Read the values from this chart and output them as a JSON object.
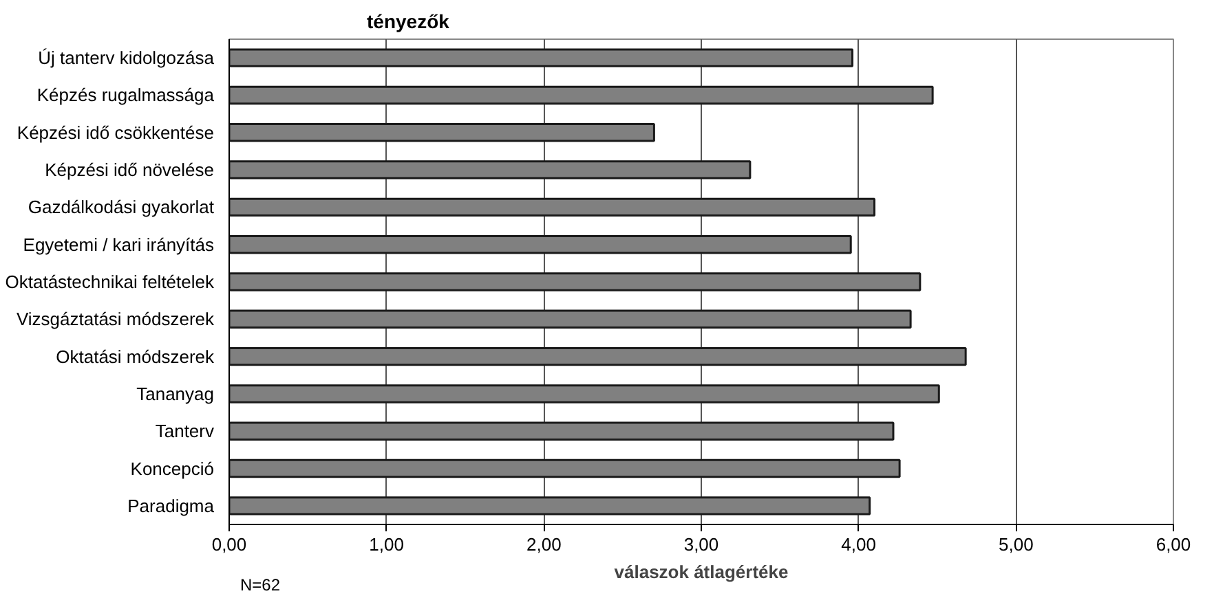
{
  "chart_data": {
    "type": "bar",
    "orientation": "horizontal",
    "title": "tényezők",
    "xlabel": "válaszok átlagértéke",
    "annotations": [
      "N=62"
    ],
    "categories": [
      "Új tanterv kidolgozása",
      "Képzés rugalmassága",
      "Képzési idő csökkentése",
      "Képzési idő növelése",
      "Gazdálkodási gyakorlat",
      "Egyetemi / kari irányítás",
      "Oktatástechnikai feltételek",
      "Vizsgáztatási módszerek",
      "Oktatási módszerek",
      "Tananyag",
      "Tanterv",
      "Koncepció",
      "Paradigma"
    ],
    "values": [
      3.96,
      4.47,
      2.7,
      3.31,
      4.1,
      3.95,
      4.39,
      4.33,
      4.68,
      4.51,
      4.22,
      4.26,
      4.07
    ],
    "color": "#808080",
    "xlim": [
      0,
      6
    ],
    "xticks": [
      {
        "value": 0,
        "label": "0,00"
      },
      {
        "value": 1,
        "label": "1,00"
      },
      {
        "value": 2,
        "label": "2,00"
      },
      {
        "value": 3,
        "label": "3,00"
      },
      {
        "value": 4,
        "label": "4,00"
      },
      {
        "value": 5,
        "label": "5,00"
      },
      {
        "value": 6,
        "label": "6,00"
      }
    ],
    "grid": "x"
  }
}
